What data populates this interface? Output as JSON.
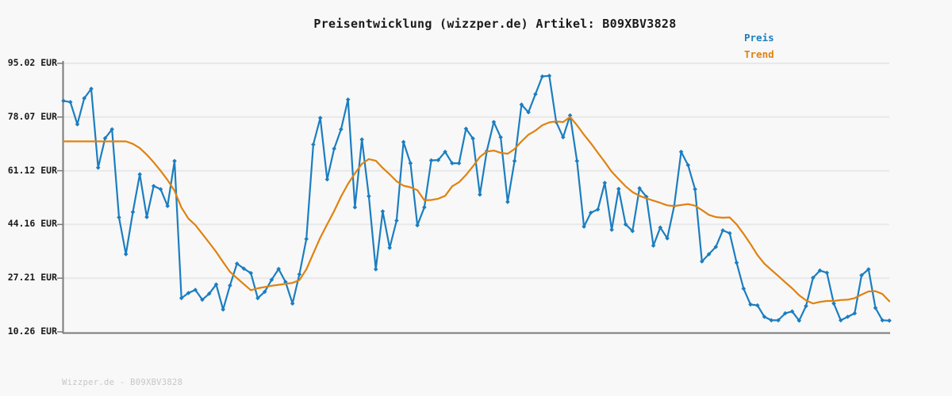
{
  "title": "Preisentwicklung (wizzper.de) Artikel: B09XBV3828",
  "watermark": "Wizzper.de - B09XBV3828",
  "colors": {
    "background": "#f8f8f8",
    "grid": "#e8e8e8",
    "axis": "#7a7a7a",
    "text": "#1a1a1a",
    "watermark": "#c6c6c6",
    "price_blue": "#1b7ec0",
    "trend_orange": "#e0820f"
  },
  "chart_data": {
    "type": "line",
    "title": "Preisentwicklung (wizzper.de) Artikel: B09XBV3828",
    "xlabel": "",
    "ylabel": "",
    "unit": "EUR",
    "ylim": [
      10.26,
      95.02
    ],
    "grid": true,
    "legend_position": "top-right",
    "x_tick_labels": [],
    "y_axis": {
      "ticks": [
        {
          "value": 95.02,
          "label": "95.02 EUR"
        },
        {
          "value": 78.07,
          "label": "78.07 EUR"
        },
        {
          "value": 61.12,
          "label": "61.12 EUR"
        },
        {
          "value": 44.16,
          "label": "44.16 EUR"
        },
        {
          "value": 27.21,
          "label": "27.21 EUR"
        },
        {
          "value": 10.26,
          "label": "10.26 EUR"
        }
      ]
    },
    "series": [
      {
        "name": "Preis",
        "color": "#1b7ec0",
        "marker": "diamond",
        "values": [
          83.2,
          82.8,
          75.8,
          84.0,
          87.0,
          62.1,
          71.4,
          74.2,
          46.4,
          34.8,
          48.1,
          60.0,
          46.5,
          56.3,
          55.3,
          50.0,
          64.2,
          20.9,
          22.5,
          23.5,
          20.4,
          22.3,
          25.2,
          17.3,
          24.9,
          31.8,
          30.2,
          28.8,
          20.9,
          22.9,
          26.7,
          30.1,
          26.0,
          19.2,
          28.4,
          39.6,
          69.4,
          77.8,
          58.4,
          68.1,
          74.2,
          83.6,
          49.6,
          71.0,
          53.1,
          30.0,
          48.3,
          36.8,
          45.4,
          70.2,
          63.5,
          43.9,
          49.6,
          64.4,
          64.5,
          67.1,
          63.5,
          63.5,
          74.4,
          71.3,
          53.6,
          67.3,
          76.5,
          71.7,
          51.3,
          64.2,
          82.0,
          79.6,
          85.3,
          90.9,
          91.1,
          76.5,
          71.7,
          78.6,
          64.2,
          43.5,
          47.9,
          48.9,
          57.3,
          42.5,
          55.4,
          44.2,
          42.1,
          55.6,
          52.9,
          37.5,
          43.2,
          39.8,
          50.0,
          67.1,
          62.9,
          55.3,
          32.5,
          34.8,
          37.1,
          42.3,
          41.4,
          32.1,
          23.9,
          18.9,
          18.6,
          15.0,
          13.9,
          13.9,
          16.1,
          16.7,
          13.8,
          18.4,
          27.3,
          29.6,
          28.9,
          19.2,
          13.9,
          15.0,
          16.1,
          28.1,
          30.0,
          17.8,
          13.9,
          13.8
        ]
      },
      {
        "name": "Trend",
        "color": "#e0820f",
        "marker": "none",
        "values": [
          70.4,
          70.4,
          70.4,
          70.4,
          70.4,
          70.4,
          70.4,
          70.4,
          70.4,
          70.4,
          69.6,
          68.3,
          66.2,
          63.8,
          61.1,
          58.2,
          54.8,
          49.5,
          46.0,
          44.0,
          41.2,
          38.4,
          35.5,
          32.3,
          29.2,
          27.2,
          25.3,
          23.4,
          24.0,
          24.4,
          24.8,
          25.1,
          25.4,
          25.7,
          26.6,
          30.0,
          35.0,
          40.0,
          44.2,
          48.4,
          53.0,
          57.0,
          60.3,
          63.3,
          64.8,
          64.3,
          62.0,
          60.0,
          57.8,
          56.4,
          55.9,
          55.0,
          51.8,
          51.9,
          52.3,
          53.2,
          56.2,
          57.5,
          59.8,
          62.5,
          65.5,
          67.2,
          67.5,
          66.8,
          66.5,
          68.0,
          70.4,
          72.5,
          73.8,
          75.5,
          76.4,
          76.7,
          76.5,
          78.1,
          75.5,
          72.5,
          69.8,
          66.8,
          63.9,
          60.8,
          58.5,
          56.2,
          54.4,
          53.2,
          52.4,
          51.7,
          51.0,
          50.2,
          50.0,
          50.3,
          50.6,
          50.1,
          48.7,
          47.2,
          46.5,
          46.3,
          46.4,
          44.2,
          41.2,
          38.0,
          34.5,
          31.8,
          29.8,
          27.9,
          25.9,
          24.0,
          21.8,
          20.2,
          19.2,
          19.7,
          20.0,
          20.0,
          20.3,
          20.4,
          20.9,
          22.0,
          23.0,
          23.1,
          22.2,
          19.9
        ]
      }
    ]
  }
}
